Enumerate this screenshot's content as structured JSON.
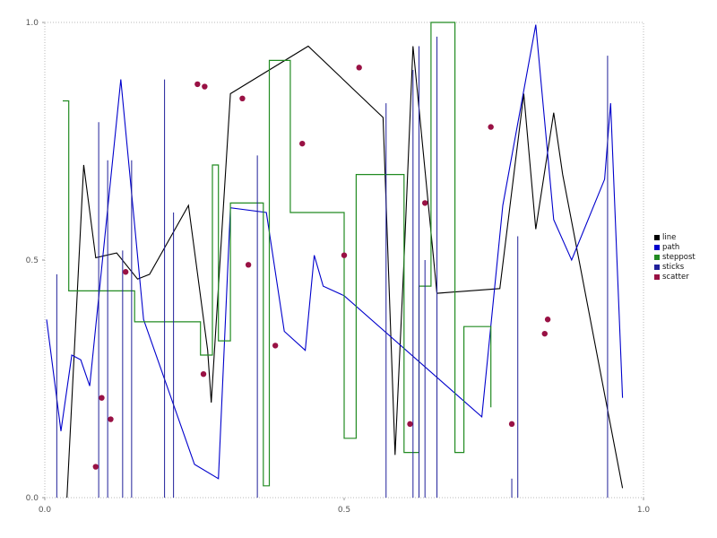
{
  "chart_data": {
    "type": "line",
    "title": "",
    "xlabel": "",
    "ylabel": "",
    "xlim": [
      0.0,
      1.0
    ],
    "ylim": [
      0.0,
      1.0
    ],
    "xticks": [
      0.0,
      0.5,
      1.0
    ],
    "yticks": [
      0.0,
      0.5,
      1.0
    ],
    "grid": "dotted plot border, no interior gridlines",
    "legend_position": "right-outside-center",
    "legend": [
      "line",
      "path",
      "steppost",
      "sticks",
      "scatter"
    ],
    "series": [
      {
        "name": "line",
        "type": "line",
        "color": "#000000",
        "x": [
          0.037,
          0.065,
          0.085,
          0.12,
          0.155,
          0.175,
          0.24,
          0.272,
          0.278,
          0.31,
          0.44,
          0.565,
          0.585,
          0.6,
          0.615,
          0.655,
          0.76,
          0.8,
          0.82,
          0.85,
          0.865,
          0.965
        ],
        "y": [
          0.0,
          0.7,
          0.505,
          0.515,
          0.46,
          0.47,
          0.615,
          0.31,
          0.2,
          0.85,
          0.95,
          0.8,
          0.09,
          0.5,
          0.95,
          0.43,
          0.44,
          0.85,
          0.565,
          0.81,
          0.68,
          0.02
        ]
      },
      {
        "name": "path",
        "type": "line",
        "color": "#0000cc",
        "x": [
          0.003,
          0.027,
          0.045,
          0.06,
          0.075,
          0.127,
          0.165,
          0.25,
          0.29,
          0.31,
          0.37,
          0.4,
          0.435,
          0.45,
          0.465,
          0.5,
          0.73,
          0.765,
          0.82,
          0.85,
          0.88,
          0.935,
          0.945,
          0.965
        ],
        "y": [
          0.375,
          0.14,
          0.3,
          0.29,
          0.235,
          0.88,
          0.375,
          0.07,
          0.04,
          0.61,
          0.6,
          0.35,
          0.31,
          0.51,
          0.445,
          0.425,
          0.17,
          0.615,
          0.995,
          0.585,
          0.5,
          0.67,
          0.83,
          0.21
        ]
      },
      {
        "name": "steppost",
        "type": "step-post",
        "color": "#228B22",
        "x": [
          0.03,
          0.04,
          0.15,
          0.26,
          0.28,
          0.29,
          0.31,
          0.365,
          0.375,
          0.41,
          0.5,
          0.52,
          0.58,
          0.6,
          0.625,
          0.645,
          0.685,
          0.7,
          0.745
        ],
        "y": [
          0.835,
          0.435,
          0.37,
          0.3,
          0.7,
          0.33,
          0.62,
          0.025,
          0.92,
          0.6,
          0.125,
          0.68,
          0.68,
          0.095,
          0.445,
          1.0,
          0.095,
          0.36,
          0.19
        ]
      },
      {
        "name": "sticks",
        "type": "sticks",
        "color": "#20209a",
        "x": [
          0.02,
          0.09,
          0.105,
          0.13,
          0.145,
          0.2,
          0.215,
          0.355,
          0.57,
          0.615,
          0.625,
          0.635,
          0.655,
          0.78,
          0.79,
          0.94
        ],
        "y": [
          0.47,
          0.79,
          0.71,
          0.52,
          0.71,
          0.88,
          0.6,
          0.72,
          0.83,
          0.9,
          0.95,
          0.5,
          0.97,
          0.04,
          0.55,
          0.93
        ]
      },
      {
        "name": "scatter",
        "type": "scatter",
        "color": "#991144",
        "x": [
          0.085,
          0.095,
          0.11,
          0.135,
          0.255,
          0.267,
          0.265,
          0.33,
          0.34,
          0.385,
          0.43,
          0.5,
          0.525,
          0.61,
          0.635,
          0.745,
          0.78,
          0.835,
          0.84
        ],
        "y": [
          0.065,
          0.21,
          0.165,
          0.475,
          0.87,
          0.865,
          0.26,
          0.84,
          0.49,
          0.32,
          0.745,
          0.51,
          0.905,
          0.155,
          0.62,
          0.78,
          0.155,
          0.345,
          0.375
        ]
      }
    ]
  }
}
